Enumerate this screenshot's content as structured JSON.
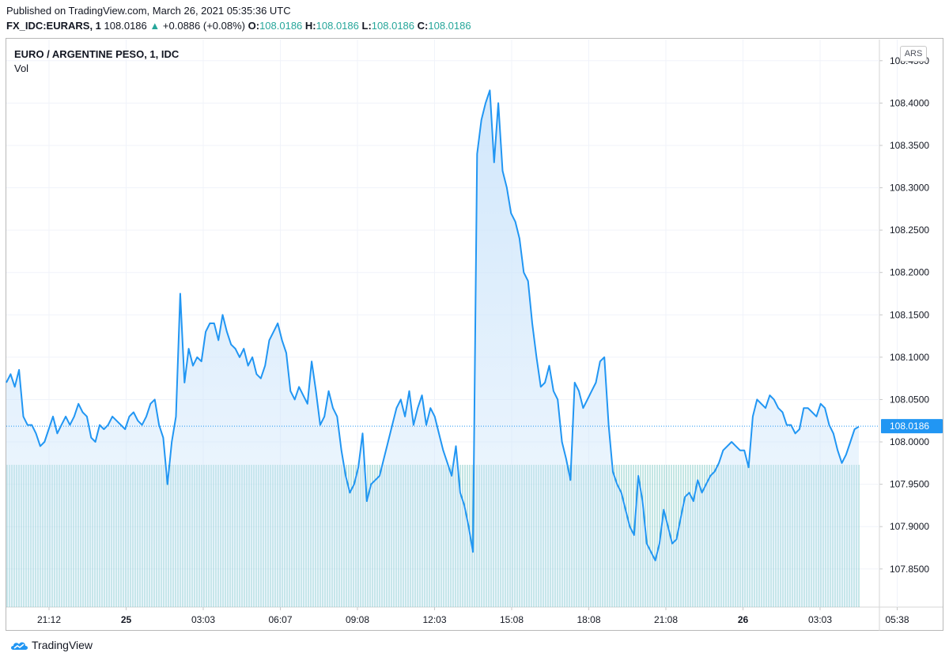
{
  "header": {
    "published": "Published on TradingView.com, March 26, 2021 05:35:36 UTC",
    "symbol": "FX_IDC:EURARS, 1",
    "last": "108.0186",
    "change": "+0.0886 (+0.08%)",
    "o_label": "O:",
    "o_value": "108.0186",
    "h_label": "H:",
    "h_value": "108.0186",
    "l_label": "L:",
    "l_value": "108.0186",
    "c_label": "C:",
    "c_value": "108.0186"
  },
  "pane": {
    "title": "EURO / ARGENTINE PESO, 1, IDC",
    "vol_label": "Vol",
    "currency": "ARS"
  },
  "footer": {
    "brand": "TradingView",
    "logo_icon": "tradingview-cloud-logo"
  },
  "colors": {
    "line": "#2196f3",
    "fill": "#cfe6fb",
    "volume": "#26a69a",
    "up": "#26a69a",
    "last_badge": "#2196f3"
  },
  "chart_data": {
    "type": "area",
    "ylim": [
      107.805,
      108.475
    ],
    "y_ticks": [
      "108.4500",
      "108.4000",
      "108.3500",
      "108.3000",
      "108.2500",
      "108.2000",
      "108.1500",
      "108.1000",
      "108.0500",
      "108.0000",
      "107.9500",
      "107.9000",
      "107.8500"
    ],
    "x_ticks": [
      "21:12",
      "25",
      "03:03",
      "06:07",
      "09:08",
      "12:03",
      "15:08",
      "18:08",
      "21:08",
      "26",
      "03:03",
      "05:38"
    ],
    "bold_x_ticks": [
      "25",
      "26"
    ],
    "last_value": "108.0186",
    "price": [
      108.07,
      108.08,
      108.065,
      108.085,
      108.03,
      108.02,
      108.02,
      108.01,
      107.995,
      108.0,
      108.015,
      108.03,
      108.01,
      108.02,
      108.03,
      108.02,
      108.03,
      108.045,
      108.035,
      108.03,
      108.005,
      108.0,
      108.02,
      108.015,
      108.02,
      108.03,
      108.025,
      108.02,
      108.015,
      108.03,
      108.035,
      108.025,
      108.02,
      108.03,
      108.045,
      108.05,
      108.02,
      108.005,
      107.95,
      108.0,
      108.03,
      108.175,
      108.07,
      108.11,
      108.09,
      108.1,
      108.095,
      108.13,
      108.14,
      108.14,
      108.12,
      108.15,
      108.13,
      108.115,
      108.11,
      108.1,
      108.11,
      108.09,
      108.1,
      108.08,
      108.075,
      108.09,
      108.12,
      108.13,
      108.14,
      108.12,
      108.105,
      108.06,
      108.05,
      108.065,
      108.055,
      108.045,
      108.095,
      108.06,
      108.02,
      108.03,
      108.06,
      108.04,
      108.03,
      107.99,
      107.96,
      107.94,
      107.95,
      107.97,
      108.01,
      107.93,
      107.95,
      107.955,
      107.96,
      107.98,
      108.0,
      108.02,
      108.04,
      108.05,
      108.03,
      108.06,
      108.02,
      108.04,
      108.055,
      108.02,
      108.04,
      108.03,
      108.01,
      107.99,
      107.975,
      107.96,
      107.995,
      107.94,
      107.925,
      107.9,
      107.87,
      108.34,
      108.38,
      108.4,
      108.415,
      108.33,
      108.4,
      108.32,
      108.3,
      108.27,
      108.26,
      108.24,
      108.2,
      108.19,
      108.14,
      108.1,
      108.065,
      108.07,
      108.09,
      108.06,
      108.05,
      108.0,
      107.98,
      107.955,
      108.07,
      108.06,
      108.04,
      108.05,
      108.06,
      108.07,
      108.095,
      108.1,
      108.02,
      107.965,
      107.95,
      107.94,
      107.92,
      107.9,
      107.89,
      107.96,
      107.93,
      107.88,
      107.87,
      107.86,
      107.88,
      107.92,
      107.9,
      107.88,
      107.885,
      107.91,
      107.935,
      107.94,
      107.93,
      107.955,
      107.94,
      107.95,
      107.96,
      107.965,
      107.975,
      107.99,
      107.995,
      108.0,
      107.995,
      107.99,
      107.99,
      107.97,
      108.03,
      108.05,
      108.045,
      108.04,
      108.055,
      108.05,
      108.04,
      108.035,
      108.02,
      108.02,
      108.01,
      108.015,
      108.04,
      108.04,
      108.035,
      108.03,
      108.045,
      108.04,
      108.02,
      108.01,
      107.99,
      107.975,
      107.985,
      108.0,
      108.015,
      108.018
    ]
  }
}
